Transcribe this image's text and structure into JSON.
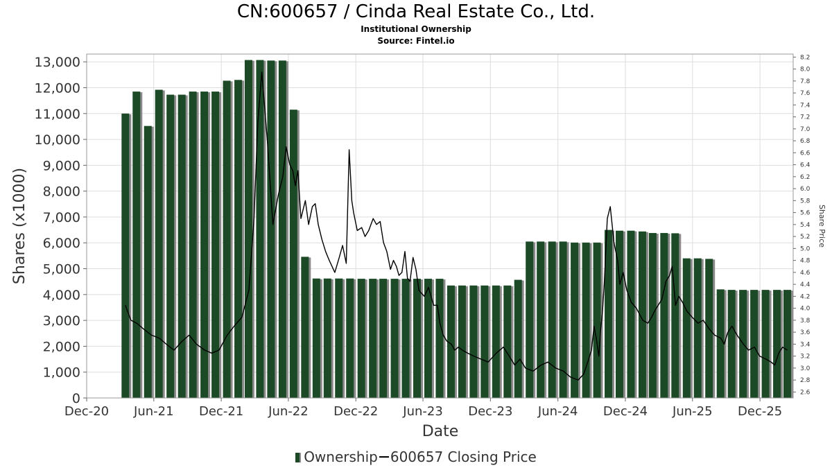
{
  "header": {
    "title": "CN:600657 / Cinda Real Estate Co., Ltd.",
    "subtitle": "Institutional Ownership",
    "source": "Source: Fintel.io"
  },
  "legend": {
    "ownership": "Ownership",
    "price": "600657 Closing Price"
  },
  "colors": {
    "bar": "#1c4a26",
    "bar_shadow": "#8a8a8a",
    "line": "#000000",
    "grid": "#dddddd"
  },
  "chart_data": {
    "type": "bar",
    "title": "CN:600657 / Cinda Real Estate Co., Ltd.",
    "xlabel": "Date",
    "ylabel": "Shares (x1000)",
    "y2label": "Share Price",
    "xlim": [
      "2020-12-01",
      "2026-03-01"
    ],
    "ylim": [
      0,
      13300
    ],
    "y2lim": [
      2.5,
      8.25
    ],
    "x_ticks": [
      "Dec-20",
      "Jun-21",
      "Dec-21",
      "Jun-22",
      "Dec-22",
      "Jun-23",
      "Dec-23",
      "Jun-24",
      "Dec-24",
      "Jun-25",
      "Dec-25"
    ],
    "y_ticks": [
      "0",
      "1,000",
      "2,000",
      "3,000",
      "4,000",
      "5,000",
      "6,000",
      "7,000",
      "8,000",
      "9,000",
      "10,000",
      "11,000",
      "12,000",
      "13,000"
    ],
    "y2_ticks": [
      "2.6",
      "2.8",
      "3.0",
      "3.2",
      "3.4",
      "3.6",
      "3.8",
      "4.0",
      "4.2",
      "4.4",
      "4.6",
      "4.8",
      "5.0",
      "5.2",
      "5.4",
      "5.6",
      "5.8",
      "6.0",
      "6.2",
      "6.4",
      "6.6",
      "6.8",
      "7.0",
      "7.2",
      "7.4",
      "7.6",
      "7.8",
      "8.0",
      "8.2"
    ],
    "grid": true,
    "legend_position": "bottom",
    "series": [
      {
        "name": "Ownership",
        "type": "bar",
        "x": [
          "2021-03-31",
          "2021-04-30",
          "2021-05-31",
          "2021-06-30",
          "2021-07-31",
          "2021-08-31",
          "2021-09-30",
          "2021-10-31",
          "2021-11-30",
          "2021-12-31",
          "2022-01-31",
          "2022-02-28",
          "2022-03-31",
          "2022-04-30",
          "2022-05-31",
          "2022-06-30",
          "2022-07-31",
          "2022-08-31",
          "2022-09-30",
          "2022-10-31",
          "2022-11-30",
          "2022-12-31",
          "2023-01-31",
          "2023-02-28",
          "2023-03-31",
          "2023-04-30",
          "2023-05-31",
          "2023-06-30",
          "2023-07-31",
          "2023-08-31",
          "2023-09-30",
          "2023-10-31",
          "2023-11-30",
          "2023-12-31",
          "2024-01-31",
          "2024-02-29",
          "2024-03-31",
          "2024-04-30",
          "2024-05-31",
          "2024-06-30",
          "2024-07-31",
          "2024-08-31",
          "2024-09-30",
          "2024-10-31",
          "2024-11-30",
          "2024-12-31",
          "2025-01-31",
          "2025-02-28",
          "2025-03-31",
          "2025-04-30",
          "2025-05-31",
          "2025-06-30",
          "2025-07-31",
          "2025-08-31",
          "2025-09-30",
          "2025-10-31",
          "2025-11-30",
          "2025-12-31",
          "2026-01-31",
          "2026-02-28"
        ],
        "values": [
          11000,
          11850,
          10520,
          11920,
          11730,
          11730,
          11850,
          11850,
          11850,
          12270,
          12300,
          13070,
          13070,
          13050,
          13050,
          11150,
          5460,
          4620,
          4620,
          4620,
          4620,
          4610,
          4610,
          4610,
          4610,
          4610,
          4610,
          4610,
          4610,
          4350,
          4350,
          4350,
          4350,
          4350,
          4350,
          4570,
          6050,
          6050,
          6050,
          6050,
          6010,
          6010,
          6010,
          6500,
          6470,
          6470,
          6440,
          6380,
          6380,
          6370,
          5400,
          5400,
          5380,
          4200,
          4180,
          4180,
          4180,
          4180,
          4180,
          4180
        ]
      },
      {
        "name": "600657 Closing Price",
        "type": "line",
        "x": [
          "2021-03-31",
          "2021-04-15",
          "2021-05-01",
          "2021-05-20",
          "2021-06-10",
          "2021-07-01",
          "2021-07-20",
          "2021-08-10",
          "2021-09-01",
          "2021-09-20",
          "2021-10-10",
          "2021-11-01",
          "2021-11-20",
          "2021-12-10",
          "2022-01-01",
          "2022-01-20",
          "2022-02-10",
          "2022-03-01",
          "2022-03-15",
          "2022-03-25",
          "2022-04-05",
          "2022-04-20",
          "2022-05-05",
          "2022-05-20",
          "2022-06-01",
          "2022-06-10",
          "2022-06-20",
          "2022-06-28",
          "2022-07-05",
          "2022-07-12",
          "2022-07-20",
          "2022-08-01",
          "2022-08-10",
          "2022-08-20",
          "2022-08-28",
          "2022-09-05",
          "2022-09-15",
          "2022-09-25",
          "2022-10-05",
          "2022-10-20",
          "2022-11-01",
          "2022-11-10",
          "2022-11-20",
          "2022-11-28",
          "2022-12-05",
          "2022-12-10",
          "2022-12-20",
          "2023-01-01",
          "2023-01-10",
          "2023-01-20",
          "2023-02-01",
          "2023-02-10",
          "2023-02-20",
          "2023-03-01",
          "2023-03-10",
          "2023-03-20",
          "2023-03-28",
          "2023-04-05",
          "2023-04-12",
          "2023-04-20",
          "2023-04-28",
          "2023-05-05",
          "2023-05-12",
          "2023-05-20",
          "2023-05-28",
          "2023-06-05",
          "2023-06-12",
          "2023-06-20",
          "2023-07-01",
          "2023-07-15",
          "2023-07-25",
          "2023-08-01",
          "2023-08-10",
          "2023-08-20",
          "2023-09-01",
          "2023-09-10",
          "2023-09-20",
          "2023-10-01",
          "2023-10-15",
          "2023-11-01",
          "2023-11-20",
          "2023-12-10",
          "2024-01-01",
          "2024-01-20",
          "2024-02-05",
          "2024-02-20",
          "2024-03-05",
          "2024-03-20",
          "2024-04-10",
          "2024-05-01",
          "2024-05-20",
          "2024-06-10",
          "2024-07-01",
          "2024-07-20",
          "2024-08-10",
          "2024-08-25",
          "2024-09-05",
          "2024-09-15",
          "2024-09-22",
          "2024-09-28",
          "2024-10-05",
          "2024-10-10",
          "2024-10-15",
          "2024-10-20",
          "2024-10-28",
          "2024-11-05",
          "2024-11-15",
          "2024-11-25",
          "2024-12-01",
          "2024-12-10",
          "2024-12-20",
          "2025-01-01",
          "2025-01-15",
          "2025-02-01",
          "2025-02-15",
          "2025-02-25",
          "2025-03-05",
          "2025-03-15",
          "2025-03-25",
          "2025-04-05",
          "2025-04-15",
          "2025-04-22",
          "2025-05-01",
          "2025-05-10",
          "2025-05-20",
          "2025-06-01",
          "2025-06-15",
          "2025-07-01",
          "2025-07-15",
          "2025-08-01",
          "2025-08-15",
          "2025-09-01",
          "2025-09-10",
          "2025-09-20",
          "2025-10-01",
          "2025-10-15",
          "2025-11-01",
          "2025-11-15",
          "2025-12-01",
          "2025-12-15",
          "2026-01-01",
          "2026-01-15",
          "2026-01-25",
          "2026-02-05",
          "2026-02-15",
          "2026-02-28"
        ],
        "values": [
          4.05,
          3.8,
          3.75,
          3.65,
          3.55,
          3.5,
          3.4,
          3.3,
          3.45,
          3.55,
          3.4,
          3.3,
          3.25,
          3.3,
          3.55,
          3.7,
          3.85,
          4.3,
          5.5,
          7.1,
          7.95,
          6.8,
          5.4,
          5.9,
          6.2,
          6.7,
          6.4,
          6.3,
          6.05,
          6.3,
          5.5,
          5.8,
          5.4,
          5.7,
          5.75,
          5.4,
          5.15,
          4.95,
          4.8,
          4.6,
          4.85,
          5.05,
          4.75,
          6.65,
          5.8,
          5.6,
          5.3,
          5.35,
          5.2,
          5.3,
          5.5,
          5.4,
          5.45,
          5.1,
          4.95,
          4.65,
          4.8,
          4.7,
          4.55,
          4.6,
          4.95,
          4.5,
          4.45,
          4.85,
          4.65,
          4.3,
          4.25,
          4.2,
          4.35,
          4.05,
          4.05,
          3.75,
          3.55,
          3.45,
          3.4,
          3.3,
          3.35,
          3.3,
          3.25,
          3.2,
          3.15,
          3.1,
          3.25,
          3.35,
          3.2,
          3.05,
          3.15,
          3.0,
          2.95,
          3.05,
          3.1,
          3.0,
          2.95,
          2.85,
          2.8,
          2.9,
          3.1,
          3.3,
          3.7,
          3.5,
          3.2,
          3.65,
          3.95,
          4.45,
          5.5,
          5.7,
          5.1,
          4.8,
          4.4,
          4.6,
          4.3,
          4.1,
          4.0,
          3.8,
          3.75,
          3.85,
          3.95,
          4.05,
          4.15,
          4.45,
          4.55,
          4.7,
          4.05,
          4.2,
          4.1,
          3.95,
          3.85,
          3.75,
          3.8,
          3.65,
          3.55,
          3.5,
          3.4,
          3.6,
          3.7,
          3.55,
          3.4,
          3.3,
          3.35,
          3.2,
          3.15,
          3.1,
          3.05,
          3.25,
          3.35,
          3.3
        ]
      }
    ]
  }
}
